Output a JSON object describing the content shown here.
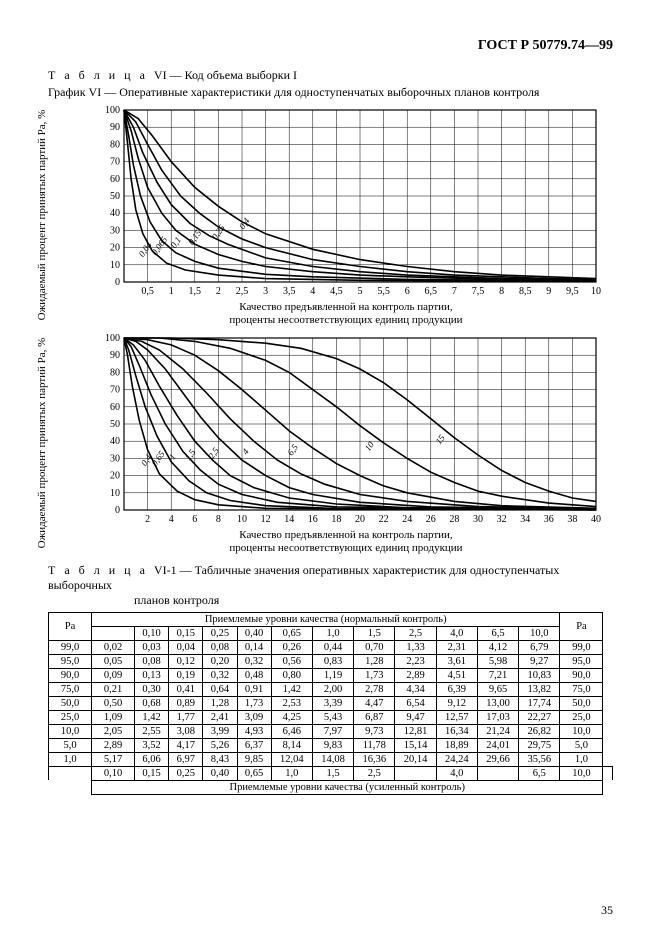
{
  "doc_code": "ГОСТ Р 50779.74—99",
  "page_number": "35",
  "table6_title_prefix": "Т а б л и ц а",
  "table6_title_num": "VI — Код объема выборки I",
  "chart6_title": "График VI — Оперативные характеристики для одноступенчатых выборочных планов контроля",
  "y_axis_label": "Ожидаемый процент принятых партий Pa, %",
  "x_axis_label_line1": "Качество предъявленной на контроль партии,",
  "x_axis_label_line2": "проценты несоответствующих единиц продукции",
  "chart1": {
    "type": "line",
    "background_color": "#ffffff",
    "grid_color": "#000000",
    "line_color": "#000000",
    "line_width": 1.6,
    "xlim": [
      0,
      10
    ],
    "ylim": [
      0,
      100
    ],
    "xticks": [
      0.5,
      1,
      1.5,
      2,
      2.5,
      3,
      3.5,
      4,
      4.5,
      5,
      5.5,
      6,
      6.5,
      7,
      7.5,
      8,
      8.5,
      9,
      9.5,
      10
    ],
    "yticks": [
      0,
      10,
      20,
      30,
      40,
      50,
      60,
      70,
      80,
      90,
      100
    ],
    "curves": [
      {
        "label": "0,4",
        "pts": [
          [
            0,
            100
          ],
          [
            0.3,
            95
          ],
          [
            0.6,
            85
          ],
          [
            1,
            70
          ],
          [
            1.5,
            55
          ],
          [
            2,
            44
          ],
          [
            2.5,
            35
          ],
          [
            3,
            28
          ],
          [
            4,
            19
          ],
          [
            5,
            13
          ],
          [
            6,
            9
          ],
          [
            7,
            6
          ],
          [
            8,
            4
          ],
          [
            9,
            3
          ],
          [
            10,
            2
          ]
        ],
        "lx": 2.6,
        "ly": 33
      },
      {
        "label": "0,25",
        "pts": [
          [
            0,
            100
          ],
          [
            0.25,
            93
          ],
          [
            0.5,
            80
          ],
          [
            0.8,
            65
          ],
          [
            1.2,
            50
          ],
          [
            1.6,
            40
          ],
          [
            2,
            32
          ],
          [
            2.5,
            25
          ],
          [
            3,
            20
          ],
          [
            4,
            13
          ],
          [
            5,
            9
          ],
          [
            6,
            6
          ],
          [
            7,
            4
          ],
          [
            8,
            3
          ],
          [
            9,
            2
          ],
          [
            10,
            1.5
          ]
        ],
        "lx": 2.05,
        "ly": 28
      },
      {
        "label": "0,15",
        "pts": [
          [
            0,
            100
          ],
          [
            0.2,
            90
          ],
          [
            0.4,
            75
          ],
          [
            0.7,
            58
          ],
          [
            1,
            45
          ],
          [
            1.4,
            34
          ],
          [
            1.8,
            27
          ],
          [
            2.2,
            22
          ],
          [
            3,
            14
          ],
          [
            4,
            9
          ],
          [
            5,
            6
          ],
          [
            6,
            4
          ],
          [
            7,
            3
          ],
          [
            8,
            2
          ],
          [
            10,
            1
          ]
        ],
        "lx": 1.55,
        "ly": 25
      },
      {
        "label": "0,1",
        "pts": [
          [
            0,
            100
          ],
          [
            0.15,
            88
          ],
          [
            0.3,
            72
          ],
          [
            0.5,
            55
          ],
          [
            0.8,
            40
          ],
          [
            1.1,
            30
          ],
          [
            1.5,
            22
          ],
          [
            2,
            16
          ],
          [
            2.5,
            12
          ],
          [
            3,
            9
          ],
          [
            4,
            6
          ],
          [
            5,
            4
          ],
          [
            6,
            3
          ],
          [
            8,
            1.5
          ],
          [
            10,
            0.8
          ]
        ],
        "lx": 1.15,
        "ly": 22
      },
      {
        "label": "0,065",
        "pts": [
          [
            0,
            100
          ],
          [
            0.1,
            85
          ],
          [
            0.2,
            68
          ],
          [
            0.35,
            50
          ],
          [
            0.55,
            35
          ],
          [
            0.8,
            24
          ],
          [
            1.1,
            17
          ],
          [
            1.5,
            12
          ],
          [
            2,
            8
          ],
          [
            3,
            4.5
          ],
          [
            4,
            3
          ],
          [
            6,
            1.5
          ],
          [
            10,
            0.5
          ]
        ],
        "lx": 0.8,
        "ly": 20
      },
      {
        "label": "0,04",
        "pts": [
          [
            0,
            100
          ],
          [
            0.07,
            82
          ],
          [
            0.15,
            60
          ],
          [
            0.25,
            42
          ],
          [
            0.4,
            28
          ],
          [
            0.6,
            18
          ],
          [
            0.9,
            11
          ],
          [
            1.3,
            7
          ],
          [
            2,
            4
          ],
          [
            3,
            2
          ],
          [
            5,
            1
          ],
          [
            10,
            0.3
          ]
        ],
        "lx": 0.5,
        "ly": 18
      }
    ]
  },
  "chart2": {
    "type": "line",
    "background_color": "#ffffff",
    "grid_color": "#000000",
    "line_color": "#000000",
    "line_width": 1.6,
    "xlim": [
      0,
      40
    ],
    "ylim": [
      0,
      100
    ],
    "xticks": [
      2,
      4,
      6,
      8,
      10,
      12,
      14,
      16,
      18,
      20,
      22,
      24,
      26,
      28,
      30,
      32,
      34,
      36,
      38,
      40
    ],
    "yticks": [
      0,
      10,
      20,
      30,
      40,
      50,
      60,
      70,
      80,
      90,
      100
    ],
    "curves": [
      {
        "label": "15",
        "pts": [
          [
            0,
            100
          ],
          [
            4,
            100
          ],
          [
            8,
            99
          ],
          [
            12,
            97
          ],
          [
            15,
            94
          ],
          [
            18,
            88
          ],
          [
            20,
            82
          ],
          [
            22,
            74
          ],
          [
            24,
            64
          ],
          [
            26,
            53
          ],
          [
            28,
            42
          ],
          [
            30,
            32
          ],
          [
            32,
            23
          ],
          [
            34,
            16
          ],
          [
            36,
            11
          ],
          [
            38,
            7
          ],
          [
            40,
            5
          ]
        ],
        "lx": 27,
        "ly": 40
      },
      {
        "label": "10",
        "pts": [
          [
            0,
            100
          ],
          [
            3,
            100
          ],
          [
            6,
            98
          ],
          [
            9,
            94
          ],
          [
            12,
            87
          ],
          [
            14,
            80
          ],
          [
            16,
            70
          ],
          [
            18,
            60
          ],
          [
            20,
            49
          ],
          [
            22,
            39
          ],
          [
            24,
            30
          ],
          [
            26,
            22
          ],
          [
            28,
            16
          ],
          [
            30,
            11
          ],
          [
            32,
            8
          ],
          [
            36,
            4
          ],
          [
            40,
            2
          ]
        ],
        "lx": 21,
        "ly": 36
      },
      {
        "label": "6,5",
        "pts": [
          [
            0,
            100
          ],
          [
            2,
            99
          ],
          [
            4,
            96
          ],
          [
            6,
            90
          ],
          [
            8,
            81
          ],
          [
            10,
            70
          ],
          [
            12,
            58
          ],
          [
            14,
            46
          ],
          [
            16,
            36
          ],
          [
            18,
            27
          ],
          [
            20,
            20
          ],
          [
            22,
            14
          ],
          [
            24,
            10
          ],
          [
            28,
            5
          ],
          [
            32,
            2.5
          ],
          [
            40,
            1
          ]
        ],
        "lx": 14.5,
        "ly": 34
      },
      {
        "label": "4",
        "pts": [
          [
            0,
            100
          ],
          [
            1.5,
            98
          ],
          [
            3,
            93
          ],
          [
            5,
            82
          ],
          [
            7,
            68
          ],
          [
            9,
            53
          ],
          [
            11,
            40
          ],
          [
            13,
            29
          ],
          [
            15,
            21
          ],
          [
            17,
            15
          ],
          [
            20,
            9
          ],
          [
            24,
            5
          ],
          [
            30,
            2
          ],
          [
            40,
            0.7
          ]
        ],
        "lx": 10.5,
        "ly": 33
      },
      {
        "label": "2,5",
        "pts": [
          [
            0,
            100
          ],
          [
            1,
            98
          ],
          [
            2,
            93
          ],
          [
            3.5,
            82
          ],
          [
            5,
            68
          ],
          [
            6.5,
            54
          ],
          [
            8,
            42
          ],
          [
            10,
            29
          ],
          [
            12,
            20
          ],
          [
            14,
            13
          ],
          [
            16,
            9
          ],
          [
            20,
            4.5
          ],
          [
            26,
            1.8
          ],
          [
            40,
            0.4
          ]
        ],
        "lx": 7.8,
        "ly": 32
      },
      {
        "label": "1,5",
        "pts": [
          [
            0,
            100
          ],
          [
            0.8,
            96
          ],
          [
            1.8,
            87
          ],
          [
            3,
            72
          ],
          [
            4.5,
            55
          ],
          [
            6,
            40
          ],
          [
            7.5,
            29
          ],
          [
            9,
            20
          ],
          [
            11,
            13
          ],
          [
            14,
            7
          ],
          [
            18,
            3.5
          ],
          [
            24,
            1.3
          ],
          [
            40,
            0.2
          ]
        ],
        "lx": 5.8,
        "ly": 31
      },
      {
        "label": "1",
        "pts": [
          [
            0,
            100
          ],
          [
            0.6,
            95
          ],
          [
            1.3,
            84
          ],
          [
            2.3,
            67
          ],
          [
            3.5,
            50
          ],
          [
            5,
            34
          ],
          [
            6.5,
            23
          ],
          [
            8,
            15
          ],
          [
            10,
            9
          ],
          [
            13,
            4.5
          ],
          [
            18,
            1.8
          ],
          [
            40,
            0.1
          ]
        ],
        "lx": 4.3,
        "ly": 30
      },
      {
        "label": "0,65",
        "pts": [
          [
            0,
            100
          ],
          [
            0.4,
            93
          ],
          [
            1,
            78
          ],
          [
            1.8,
            60
          ],
          [
            2.8,
            43
          ],
          [
            4,
            28
          ],
          [
            5.5,
            17
          ],
          [
            7,
            10
          ],
          [
            9,
            5.5
          ],
          [
            12,
            2.5
          ],
          [
            18,
            0.8
          ],
          [
            40,
            0.05
          ]
        ],
        "lx": 3.1,
        "ly": 29
      },
      {
        "label": "0,4",
        "pts": [
          [
            0,
            100
          ],
          [
            0.3,
            90
          ],
          [
            0.7,
            72
          ],
          [
            1.3,
            52
          ],
          [
            2,
            35
          ],
          [
            3,
            21
          ],
          [
            4.5,
            11
          ],
          [
            6,
            6
          ],
          [
            8,
            3
          ],
          [
            12,
            1
          ],
          [
            40,
            0.02
          ]
        ],
        "lx": 2.1,
        "ly": 28
      }
    ]
  },
  "table61_title_prefix": "Т а б л и ц а",
  "table61_title_num": "VI-1 — Табличные значения оперативных характеристик для одноступенчатых выборочных",
  "table61_title_cont": "планов контроля",
  "table": {
    "pa_label": "Pa",
    "aql_header": "Приемлемые уровни качества (нормальный контроль)",
    "aql_footer": "Приемлемые уровни качества (усиленный контроль)",
    "top_cols_blank_then": [
      "0,10",
      "0,15",
      "0,25",
      "0,40",
      "0,65",
      "1,0",
      "1,5",
      "2,5",
      "4,0",
      "6,5",
      "10,0"
    ],
    "bot_cols": [
      "0,10",
      "0,15",
      "0,25",
      "0,40",
      "0,65",
      "1,0",
      "1,5",
      "2,5",
      "",
      "4,0",
      "",
      "6,5",
      "10,0"
    ],
    "rows": [
      {
        "pa": "99,0",
        "v": [
          "0,02",
          "0,03",
          "0,04",
          "0,08",
          "0,14",
          "0,26",
          "0,44",
          "0,70",
          "1,33",
          "2,31",
          "4,12",
          "6,79"
        ]
      },
      {
        "pa": "95,0",
        "v": [
          "0,05",
          "0,08",
          "0,12",
          "0,20",
          "0,32",
          "0,56",
          "0,83",
          "1,28",
          "2,23",
          "3,61",
          "5,98",
          "9,27"
        ]
      },
      {
        "pa": "90,0",
        "v": [
          "0,09",
          "0,13",
          "0,19",
          "0,32",
          "0,48",
          "0,80",
          "1,19",
          "1,73",
          "2,89",
          "4,51",
          "7,21",
          "10,83"
        ]
      },
      {
        "pa": "75,0",
        "v": [
          "0,21",
          "0,30",
          "0,41",
          "0,64",
          "0,91",
          "1,42",
          "2,00",
          "2,78",
          "4,34",
          "6,39",
          "9,65",
          "13,82"
        ]
      },
      {
        "pa": "50,0",
        "v": [
          "0,50",
          "0,68",
          "0,89",
          "1,28",
          "1,73",
          "2,53",
          "3,39",
          "4,47",
          "6,54",
          "9,12",
          "13,00",
          "17,74"
        ]
      },
      {
        "pa": "25,0",
        "v": [
          "1,09",
          "1,42",
          "1,77",
          "2,41",
          "3,09",
          "4,25",
          "5,43",
          "6,87",
          "9,47",
          "12,57",
          "17,03",
          "22,27"
        ]
      },
      {
        "pa": "10,0",
        "v": [
          "2,05",
          "2,55",
          "3,08",
          "3,99",
          "4,93",
          "6,46",
          "7,97",
          "9,73",
          "12,81",
          "16,34",
          "21,24",
          "26,82"
        ]
      },
      {
        "pa": "5,0",
        "v": [
          "2,89",
          "3,52",
          "4,17",
          "5,26",
          "6,37",
          "8,14",
          "9,83",
          "11,78",
          "15,14",
          "18,89",
          "24,01",
          "29,75"
        ]
      },
      {
        "pa": "1,0",
        "v": [
          "5,17",
          "6,06",
          "6,97",
          "8,43",
          "9,85",
          "12,04",
          "14,08",
          "16,36",
          "20,14",
          "24,24",
          "29,66",
          "35,56"
        ]
      }
    ]
  }
}
